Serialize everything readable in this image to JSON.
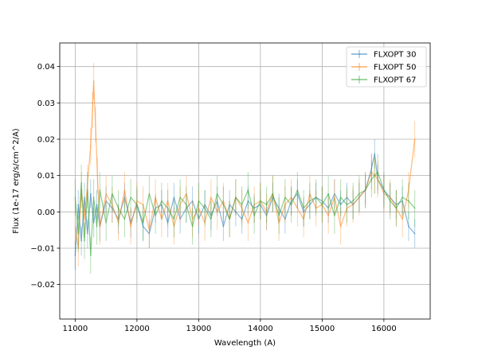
{
  "chart_data": {
    "type": "line",
    "title": "",
    "xlabel": "Wavelength (A)",
    "ylabel": "Flux (1e-17 erg/s/cm^2/A)",
    "xlim": [
      10750,
      16750
    ],
    "ylim": [
      -0.0295,
      0.0465
    ],
    "xticks": [
      11000,
      12000,
      13000,
      14000,
      15000,
      16000
    ],
    "xtick_labels": [
      "11000",
      "12000",
      "13000",
      "14000",
      "15000",
      "16000"
    ],
    "yticks": [
      -0.02,
      -0.01,
      0.0,
      0.01,
      0.02,
      0.03,
      0.04
    ],
    "ytick_labels": [
      "−0.02",
      "−0.01",
      "0.00",
      "0.01",
      "0.02",
      "0.03",
      "0.04"
    ],
    "grid": true,
    "legend_position": "top-right",
    "series": [
      {
        "name": "FLXOPT 30",
        "color": "#1f77b4",
        "x": [
          11000,
          11050,
          11100,
          11150,
          11200,
          11250,
          11300,
          11350,
          11400,
          11500,
          11600,
          11700,
          11800,
          11900,
          12000,
          12100,
          12200,
          12300,
          12400,
          12500,
          12600,
          12700,
          12800,
          12900,
          13000,
          13100,
          13200,
          13300,
          13400,
          13500,
          13600,
          13700,
          13800,
          13900,
          14000,
          14100,
          14200,
          14300,
          14400,
          14500,
          14600,
          14700,
          14800,
          14900,
          15000,
          15100,
          15200,
          15300,
          15400,
          15500,
          15600,
          15700,
          15800,
          15850,
          15900,
          16000,
          16100,
          16200,
          16300,
          16400,
          16500
        ],
        "y": [
          -0.012,
          0.002,
          -0.008,
          0.004,
          -0.006,
          0.005,
          -0.003,
          0.002,
          -0.004,
          0.003,
          0.001,
          -0.002,
          0.004,
          -0.003,
          0.002,
          -0.004,
          -0.006,
          0.001,
          0.002,
          -0.003,
          0.004,
          -0.002,
          0.001,
          0.003,
          -0.002,
          0.002,
          -0.001,
          0.003,
          -0.004,
          0.002,
          0.0,
          -0.002,
          0.003,
          0.001,
          0.002,
          -0.001,
          0.004,
          0.001,
          -0.002,
          0.003,
          0.005,
          0.0,
          0.002,
          0.004,
          0.003,
          0.001,
          0.005,
          0.002,
          0.004,
          0.002,
          0.004,
          0.006,
          0.012,
          0.016,
          0.009,
          0.006,
          0.004,
          0.002,
          0.003,
          -0.004,
          -0.006
        ],
        "err": 0.004
      },
      {
        "name": "FLXOPT 50",
        "color": "#ff7f0e",
        "x": [
          11000,
          11050,
          11100,
          11150,
          11200,
          11250,
          11280,
          11300,
          11330,
          11360,
          11400,
          11500,
          11600,
          11700,
          11800,
          11900,
          12000,
          12100,
          12200,
          12300,
          12400,
          12500,
          12600,
          12700,
          12800,
          12900,
          13000,
          13100,
          13200,
          13300,
          13400,
          13500,
          13600,
          13700,
          13800,
          13900,
          14000,
          14100,
          14200,
          14300,
          14400,
          14500,
          14600,
          14700,
          14800,
          14900,
          15000,
          15100,
          15200,
          15300,
          15400,
          15500,
          15600,
          15700,
          15800,
          15850,
          15900,
          16000,
          16100,
          16200,
          16300,
          16400,
          16500
        ],
        "y": [
          -0.004,
          -0.01,
          0.006,
          -0.002,
          0.008,
          0.018,
          0.028,
          0.036,
          0.024,
          0.01,
          -0.004,
          0.005,
          0.002,
          -0.003,
          0.006,
          -0.004,
          0.003,
          0.002,
          -0.005,
          0.004,
          -0.002,
          0.003,
          -0.004,
          0.002,
          0.005,
          -0.002,
          0.001,
          -0.003,
          0.004,
          0.0,
          0.003,
          -0.002,
          0.004,
          0.001,
          -0.003,
          0.002,
          0.003,
          0.0,
          0.005,
          -0.003,
          0.002,
          0.004,
          0.001,
          -0.002,
          0.005,
          0.001,
          0.002,
          -0.001,
          0.004,
          -0.004,
          0.001,
          0.002,
          0.004,
          0.006,
          0.011,
          0.01,
          0.009,
          0.005,
          0.004,
          0.001,
          -0.002,
          0.006,
          0.02
        ],
        "err": 0.005
      },
      {
        "name": "FLXOPT 67",
        "color": "#2ca02c",
        "x": [
          11000,
          11050,
          11100,
          11150,
          11200,
          11250,
          11300,
          11350,
          11400,
          11500,
          11600,
          11700,
          11800,
          11900,
          12000,
          12100,
          12200,
          12300,
          12400,
          12500,
          12600,
          12700,
          12800,
          12900,
          13000,
          13100,
          13200,
          13300,
          13400,
          13500,
          13600,
          13700,
          13800,
          13900,
          14000,
          14100,
          14200,
          14300,
          14400,
          14500,
          14600,
          14700,
          14800,
          14900,
          15000,
          15100,
          15200,
          15300,
          15400,
          15500,
          15600,
          15700,
          15800,
          15850,
          15900,
          16000,
          16100,
          16200,
          16300,
          16400,
          16500
        ],
        "y": [
          0.004,
          -0.006,
          0.008,
          -0.008,
          0.006,
          -0.012,
          0.004,
          -0.004,
          0.006,
          -0.003,
          0.005,
          0.001,
          -0.002,
          0.004,
          0.002,
          -0.003,
          0.005,
          -0.001,
          0.003,
          0.001,
          -0.002,
          0.004,
          0.002,
          -0.004,
          0.003,
          0.001,
          -0.002,
          0.005,
          0.002,
          -0.002,
          0.004,
          0.002,
          0.006,
          -0.001,
          0.003,
          0.002,
          0.005,
          -0.001,
          0.004,
          0.002,
          0.006,
          0.001,
          0.003,
          0.004,
          0.002,
          0.005,
          -0.001,
          0.004,
          0.002,
          0.003,
          0.005,
          0.006,
          0.009,
          0.01,
          0.011,
          0.006,
          0.003,
          0.001,
          0.004,
          0.003,
          0.001
        ],
        "err": 0.005
      }
    ]
  }
}
